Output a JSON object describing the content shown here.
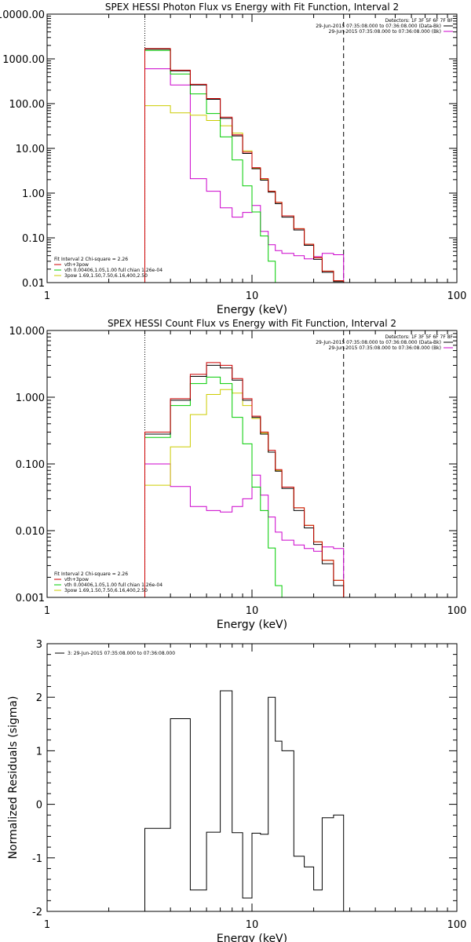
{
  "chart_data": [
    {
      "type": "line",
      "scale": "log-log",
      "step": true,
      "title": "SPEX HESSI Photon Flux vs Energy with Fit Function, Interval 2",
      "xlabel": "Energy (keV)",
      "ylabel": "",
      "xlim": [
        1,
        100
      ],
      "ylim": [
        0.01,
        10000
      ],
      "x_ticks": [
        "1",
        "10",
        "100"
      ],
      "y_ticks": [
        "0.01",
        "0.10",
        "1.00",
        "10.00",
        "100.00",
        "1000.00",
        "10000.00"
      ],
      "vlines": [
        {
          "x": 3,
          "style": "dotted"
        },
        {
          "x": 28,
          "style": "dashed"
        }
      ],
      "legend_top": [
        {
          "label": "Detectors: 1F 3F 5F 6F 7F 8F",
          "color": ""
        },
        {
          "label": "29-Jun-2015 07:35:08.000 to 07:36:08.000 (Data-Bk)",
          "color": "#000000"
        },
        {
          "label": "29-Jun-2015 07:35:08.000 to 07:36:08.000 (Bk)",
          "color": "#cc00cc"
        }
      ],
      "legend_bottom": [
        {
          "label": "Fit Interval 2   Chi-square = 2.26",
          "color": "#000000"
        },
        {
          "label": "vth+3pow",
          "color": "#cc0000"
        },
        {
          "label": "vth 0.00406,1.05,1.00  full chian 1.26e-04",
          "color": "#00cc00"
        },
        {
          "label": "3pow 1.69,1.50,7.50,6.16,400,2.50",
          "color": "#cccc00"
        }
      ],
      "edges": [
        3,
        4,
        5,
        6,
        7,
        8,
        9,
        10,
        11,
        12,
        13,
        14,
        16,
        18,
        20,
        22,
        25,
        28
      ],
      "series": [
        {
          "name": "vth+3pow",
          "color": "#cc0000",
          "values": [
            1700,
            560,
            270,
            130,
            50,
            20,
            8.2,
            3.7,
            2.1,
            1.1,
            0.62,
            0.31,
            0.16,
            0.072,
            0.036,
            0.018,
            0.011
          ]
        },
        {
          "name": "",
          "color": "#000000",
          "values": [
            1650,
            540,
            260,
            125,
            47,
            19,
            7.7,
            3.5,
            1.95,
            1.05,
            0.58,
            0.29,
            0.15,
            0.068,
            0.033,
            0.017,
            0.0105
          ]
        },
        {
          "name": "vth",
          "color": "#00cc00",
          "values": [
            1550,
            460,
            165,
            60,
            18,
            5.5,
            1.45,
            0.38,
            0.11,
            0.03
          ]
        },
        {
          "name": "3pow",
          "color": "#cccc00",
          "values": [
            90,
            62,
            55,
            42,
            32,
            22,
            8.8,
            3.6,
            2.05,
            1.1,
            0.62,
            0.31,
            0.16,
            0.072,
            0.036,
            0.018,
            0.011
          ]
        },
        {
          "name": "",
          "color": "#cc00cc",
          "values": [
            600,
            260,
            2.1,
            1.1,
            0.47,
            0.29,
            0.37,
            0.53,
            0.14,
            0.07,
            0.052,
            0.045,
            0.04,
            0.034,
            0.038,
            0.045,
            0.042
          ]
        }
      ]
    },
    {
      "type": "line",
      "scale": "log-log",
      "step": true,
      "title": "SPEX HESSI Count Flux vs Energy with Fit Function, Interval 2",
      "xlabel": "Energy (keV)",
      "ylabel": "",
      "xlim": [
        1,
        100
      ],
      "ylim": [
        0.001,
        10
      ],
      "x_ticks": [
        "1",
        "10",
        "100"
      ],
      "y_ticks": [
        "0.001",
        "0.010",
        "0.100",
        "1.000",
        "10.000"
      ],
      "vlines": [
        {
          "x": 3,
          "style": "dotted"
        },
        {
          "x": 28,
          "style": "dashed"
        }
      ],
      "legend_top": [
        {
          "label": "Detectors: 1F 3F 5F 6F 7F 8F",
          "color": ""
        },
        {
          "label": "29-Jun-2015 07:35:08.000 to 07:36:08.000 (Data-Bk)",
          "color": "#000000"
        },
        {
          "label": "29-Jun-2015 07:35:08.000 to 07:36:08.000 (Bk)",
          "color": "#cc00cc"
        }
      ],
      "legend_bottom": [
        {
          "label": "Fit Interval 2   Chi-square = 2.26",
          "color": "#000000"
        },
        {
          "label": "vth+3pow",
          "color": "#cc0000"
        },
        {
          "label": "vth 0.00406,1.05,1.00  full chian 1.26e-04",
          "color": "#00cc00"
        },
        {
          "label": "3pow 1.69,1.50,7.50,6.16,400,2.50",
          "color": "#cccc00"
        }
      ],
      "edges": [
        3,
        4,
        5,
        6,
        7,
        8,
        9,
        10,
        11,
        12,
        13,
        14,
        16,
        18,
        20,
        22,
        25,
        28
      ],
      "series": [
        {
          "name": "vth+3pow",
          "color": "#cc0000",
          "values": [
            0.3,
            0.95,
            2.2,
            3.3,
            3.0,
            1.9,
            0.95,
            0.52,
            0.3,
            0.16,
            0.082,
            0.045,
            0.022,
            0.012,
            0.0068,
            0.0036,
            0.0018
          ]
        },
        {
          "name": "",
          "color": "#000000",
          "values": [
            0.28,
            0.9,
            2.05,
            3.0,
            2.75,
            1.8,
            0.9,
            0.5,
            0.28,
            0.15,
            0.078,
            0.043,
            0.02,
            0.011,
            0.0062,
            0.0032,
            0.0015
          ]
        },
        {
          "name": "vth",
          "color": "#00cc00",
          "values": [
            0.25,
            0.75,
            1.6,
            2.0,
            1.6,
            0.5,
            0.2,
            0.045,
            0.02,
            0.0055,
            0.0015
          ]
        },
        {
          "name": "3pow",
          "color": "#cccc00",
          "values": [
            0.048,
            0.18,
            0.55,
            1.1,
            1.3,
            1.15,
            0.75,
            0.48,
            0.29,
            0.15,
            0.08,
            0.045,
            0.022,
            0.012,
            0.0068,
            0.0036,
            0.0018
          ]
        },
        {
          "name": "",
          "color": "#cc00cc",
          "values": [
            0.1,
            0.046,
            0.023,
            0.02,
            0.019,
            0.023,
            0.03,
            0.068,
            0.034,
            0.016,
            0.0095,
            0.0072,
            0.0061,
            0.0054,
            0.0049,
            0.0057,
            0.0054
          ]
        }
      ]
    },
    {
      "type": "line",
      "scale": "log-x",
      "step": true,
      "title": "",
      "xlabel": "Energy (keV)",
      "ylabel": "Normalized Residuals (sigma)",
      "xlim": [
        1,
        100
      ],
      "ylim": [
        -2,
        3
      ],
      "x_ticks": [
        "1",
        "10",
        "100"
      ],
      "y_ticks": [
        "-2",
        "-1",
        "0",
        "1",
        "2",
        "3"
      ],
      "legend_top": [
        {
          "label": "3: 29-Jun-2015 07:35:08.000 to 07:36:08.000",
          "color": "#000000"
        }
      ],
      "edges": [
        3,
        4,
        5,
        6,
        7,
        8,
        9,
        10,
        11,
        12,
        13,
        14,
        16,
        18,
        20,
        22,
        25,
        28
      ],
      "series": [
        {
          "name": "",
          "color": "#000000",
          "values": [
            -0.45,
            1.6,
            -1.6,
            -0.52,
            2.12,
            -0.53,
            -1.75,
            -0.54,
            -0.56,
            2.0,
            1.18,
            1.0,
            -0.97,
            -1.17,
            -1.6,
            -0.25,
            -0.2
          ]
        }
      ]
    }
  ]
}
